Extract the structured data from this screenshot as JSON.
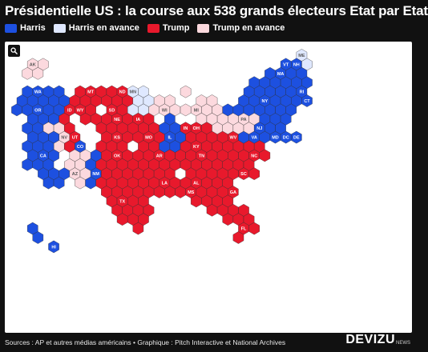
{
  "title": "Présidentielle US : la course aux 538 grands électeurs Etat par Etat",
  "legend": [
    {
      "label": "Harris",
      "color": "#1d50e0"
    },
    {
      "label": "Harris en avance",
      "color": "#dfe8ff"
    },
    {
      "label": "Trump",
      "color": "#e8192c"
    },
    {
      "label": "Trump en avance",
      "color": "#fcd9de"
    }
  ],
  "colors": {
    "harris": "#1d50e0",
    "harris_lead": "#dfe8ff",
    "trump": "#e8192c",
    "trump_lead": "#fcd9de",
    "background": "#ffffff"
  },
  "zoom_icon": "search-icon",
  "states": {
    "AK": "trump_lead",
    "ME": "harris_lead",
    "VT": "harris",
    "NH": "harris",
    "WA": "harris",
    "OR": "harris",
    "CA": "harris",
    "NV": "trump_lead",
    "ID": "trump",
    "MT": "trump",
    "WY": "trump",
    "UT": "trump",
    "AZ": "trump_lead",
    "CO": "harris",
    "NM": "harris",
    "ND": "trump",
    "SD": "trump",
    "NE": "trump",
    "KS": "trump",
    "OK": "trump",
    "TX": "trump",
    "MN": "harris_lead",
    "IA": "trump",
    "MO": "trump",
    "AR": "trump",
    "LA": "trump",
    "WI": "trump_lead",
    "IL": "harris",
    "MI": "trump_lead",
    "IN": "trump",
    "OH": "trump",
    "KY": "trump",
    "TN": "trump",
    "MS": "trump",
    "AL": "trump",
    "GA": "trump",
    "FL": "trump",
    "SC": "trump",
    "NC": "trump",
    "VA": "harris",
    "WV": "trump",
    "PA": "trump_lead",
    "NY": "harris",
    "NJ": "harris",
    "DE": "harris",
    "MD": "harris",
    "DC": "harris",
    "CT": "harris",
    "RI": "harris",
    "MA": "harris",
    "HI": "harris"
  },
  "footer": {
    "sources": "Sources : AP et autres médias américains • Graphique : Pitch Interactive et National Archives",
    "brand": "DEVIZU",
    "brand_sub": "NEWS"
  }
}
